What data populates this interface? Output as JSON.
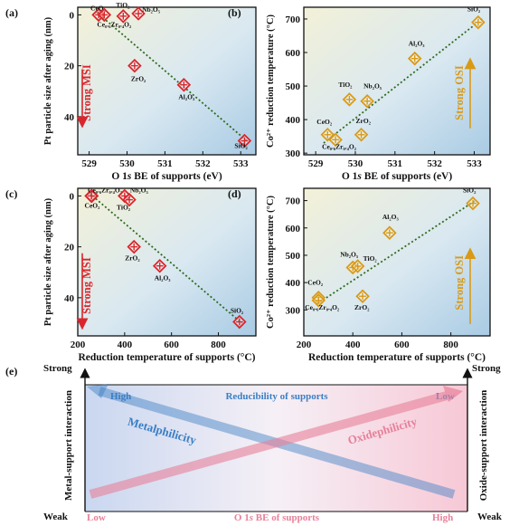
{
  "chart_data": [
    {
      "panel": "(a)",
      "type": "scatter",
      "xlabel": "O 1s BE of supports (eV)",
      "ylabel": "Pt particle size after aging (nm)",
      "xlim": [
        528.7,
        533.4
      ],
      "ylim": [
        -3,
        55
      ],
      "y_inverted": true,
      "xticks": [
        "529",
        "530",
        "531",
        "532",
        "533"
      ],
      "yticks": [
        "0",
        "20",
        "40"
      ],
      "points": [
        {
          "x": 529.25,
          "y": 0,
          "label": "CeO₂"
        },
        {
          "x": 529.4,
          "y": 0,
          "label": "Ce₀.₆Zr₀.₄O₂"
        },
        {
          "x": 529.9,
          "y": 0.5,
          "label": "TiO₂"
        },
        {
          "x": 530.3,
          "y": -0.5,
          "label": "Nb₂O₅"
        },
        {
          "x": 530.2,
          "y": 20,
          "label": "ZrO₂"
        },
        {
          "x": 531.5,
          "y": 27.5,
          "label": "Al₂O₃"
        },
        {
          "x": 533.1,
          "y": 49.5,
          "label": "SiO₂"
        }
      ],
      "trend": [
        [
          529.2,
          -1
        ],
        [
          533.2,
          50
        ]
      ],
      "annotation": "Strong MSI",
      "marker_color": "#d9262c",
      "trend_color": "#2f6b1f",
      "annotation_color": "#d9262c"
    },
    {
      "panel": "(b)",
      "type": "scatter",
      "xlabel": "O 1s BE of supports (eV)",
      "ylabel": "Co²⁺ reduction temperature (°C)",
      "xlim": [
        528.7,
        533.4
      ],
      "ylim": [
        295,
        735
      ],
      "xticks": [
        "529",
        "530",
        "531",
        "532",
        "533"
      ],
      "yticks": [
        "300",
        "400",
        "500",
        "600",
        "700"
      ],
      "points": [
        {
          "x": 529.3,
          "y": 355,
          "label": "CeO₂"
        },
        {
          "x": 529.5,
          "y": 340,
          "label": "Ce₀.₆Zr₀.₄O₂"
        },
        {
          "x": 529.85,
          "y": 460,
          "label": "TiO₂"
        },
        {
          "x": 530.3,
          "y": 455,
          "label": "Nb₂O₅"
        },
        {
          "x": 530.15,
          "y": 355,
          "label": "ZrO₂"
        },
        {
          "x": 531.5,
          "y": 582,
          "label": "Al₂O₃"
        },
        {
          "x": 533.1,
          "y": 690,
          "label": "SiO₂"
        }
      ],
      "trend": [
        [
          529.2,
          330
        ],
        [
          533.2,
          700
        ]
      ],
      "annotation": "Strong OSI",
      "marker_color": "#d99a16",
      "trend_color": "#2f6b1f",
      "annotation_color": "#d99a16"
    },
    {
      "panel": "(c)",
      "type": "scatter",
      "xlabel": "Reduction temperature of supports (°C)",
      "ylabel": "Pt particle size after aging (nm)",
      "xlim": [
        200,
        960
      ],
      "ylim": [
        -3,
        55
      ],
      "y_inverted": true,
      "xticks": [
        "200",
        "400",
        "600",
        "800"
      ],
      "yticks": [
        "0",
        "20",
        "40"
      ],
      "points": [
        {
          "x": 260,
          "y": 0,
          "label": "CeO₂"
        },
        {
          "x": 258,
          "y": 0,
          "label": "Ce₀.₆Zr₀.₄O₂"
        },
        {
          "x": 400,
          "y": 0,
          "label": "Nb₂O₅"
        },
        {
          "x": 420,
          "y": 1.5,
          "label": "TiO₂"
        },
        {
          "x": 440,
          "y": 20,
          "label": "ZrO₂"
        },
        {
          "x": 550,
          "y": 27.5,
          "label": "Al₂O₃"
        },
        {
          "x": 890,
          "y": 49.5,
          "label": "SiO₂"
        }
      ],
      "trend": [
        [
          250,
          -1
        ],
        [
          900,
          50
        ]
      ],
      "annotation": "Strong MSI",
      "marker_color": "#d9262c",
      "trend_color": "#2f6b1f",
      "annotation_color": "#d9262c"
    },
    {
      "panel": "(d)",
      "type": "scatter",
      "xlabel": "Reduction temperature of supports (°C)",
      "ylabel": "Co²⁺ reduction temperature (°C)",
      "xlim": [
        200,
        960
      ],
      "ylim": [
        205,
        745
      ],
      "xticks": [
        "200",
        "400",
        "600",
        "800"
      ],
      "yticks": [
        "300",
        "400",
        "500",
        "600",
        "700"
      ],
      "points": [
        {
          "x": 260,
          "y": 345,
          "label": "CeO₂"
        },
        {
          "x": 260,
          "y": 335,
          "label": "Ce₀.₆Zr₀.₄O₂"
        },
        {
          "x": 400,
          "y": 455,
          "label": "Nb₂O₅"
        },
        {
          "x": 420,
          "y": 460,
          "label": "TiO₂"
        },
        {
          "x": 440,
          "y": 350,
          "label": "ZrO₂"
        },
        {
          "x": 550,
          "y": 582,
          "label": "Al₂O₃"
        },
        {
          "x": 890,
          "y": 690,
          "label": "SiO₂"
        }
      ],
      "trend": [
        [
          250,
          320
        ],
        [
          900,
          700
        ]
      ],
      "annotation": "Strong OSI",
      "marker_color": "#d99a16",
      "trend_color": "#2f6b1f",
      "annotation_color": "#d99a16"
    }
  ],
  "schematic": {
    "panel": "(e)",
    "top_label": "Reducibility of supports",
    "bottom_label": "O 1s BE of supports",
    "left_top": "High",
    "right_top": "Low",
    "left_bottom": "Low",
    "right_bottom": "High",
    "left_axis": "Metal-support interaction",
    "right_axis": "Oxide-support interaction",
    "strong": "Strong",
    "weak": "Weak",
    "metal_label": "Metalphilicity",
    "oxide_label": "Oxidephilicity",
    "blue": "#3b7fc4",
    "pink": "#e7809a"
  }
}
